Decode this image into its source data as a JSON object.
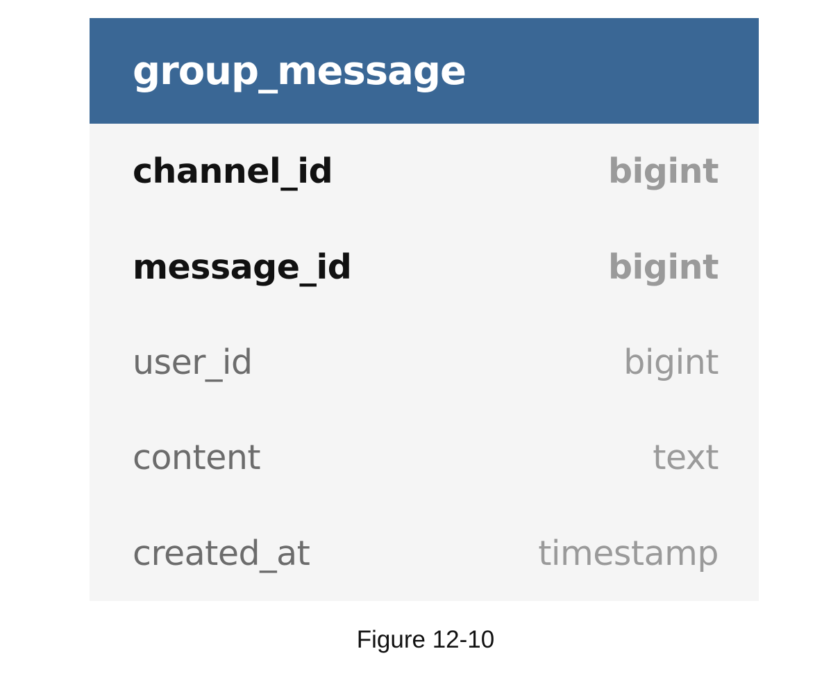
{
  "table": {
    "name": "group_message",
    "columns": [
      {
        "name": "channel_id",
        "type": "bigint",
        "key": true
      },
      {
        "name": "message_id",
        "type": "bigint",
        "key": true
      },
      {
        "name": "user_id",
        "type": "bigint",
        "key": false
      },
      {
        "name": "content",
        "type": "text",
        "key": false
      },
      {
        "name": "created_at",
        "type": "timestamp",
        "key": false
      }
    ]
  },
  "caption": "Figure 12-10",
  "colors": {
    "header_bg": "#3a6795",
    "body_bg": "#f5f5f5",
    "key_name": "#111111",
    "plain_name": "#6c6c6c",
    "type_text": "#9a9a9a"
  }
}
